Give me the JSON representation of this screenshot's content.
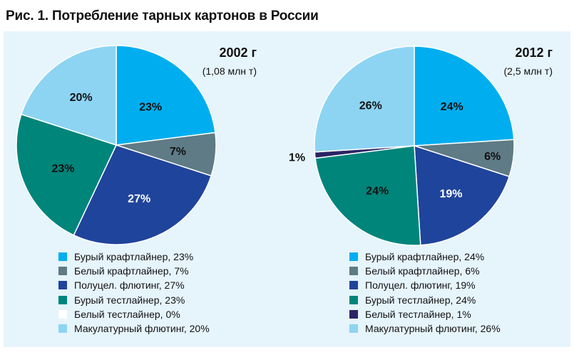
{
  "figure": {
    "title": "Рис. 1. Потребление тарных картонов в России"
  },
  "chart_data": [
    {
      "type": "pie",
      "title": "2002 г",
      "subtitle": "(1,08 млн т)",
      "categories": [
        "Бурый крафтлайнер",
        "Белый крафтлайнер",
        "Полуцел. флютинг",
        "Бурый тестлайнер",
        "Белый тестлайнер",
        "Макулатурный флютинг"
      ],
      "values": [
        23,
        7,
        27,
        23,
        0,
        20
      ],
      "data_labels": [
        "23%",
        "7%",
        "27%",
        "23%",
        "",
        "20%"
      ],
      "legend_labels": [
        "Бурый крафтлайнер, 23%",
        "Белый крафтлайнер, 7%",
        "Полуцел. флютинг, 27%",
        "Бурый тестлайнер, 23%",
        "Белый тестлайнер, 0%",
        "Макулатурный флютинг, 20%"
      ],
      "colors": [
        "#00aeef",
        "#5e7b86",
        "#1f449b",
        "#00857b",
        "#ffffff",
        "#8dd4f3"
      ],
      "legend": "bottom"
    },
    {
      "type": "pie",
      "title": "2012 г",
      "subtitle": "(2,5 млн т)",
      "categories": [
        "Бурый крафтлайнер",
        "Белый крафтлайнер",
        "Полуцел. флютинг",
        "Бурый тестлайнер",
        "Белый тестлайнер",
        "Макулатурный флютинг"
      ],
      "values": [
        24,
        6,
        19,
        24,
        1,
        26
      ],
      "data_labels": [
        "24%",
        "6%",
        "19%",
        "24%",
        "1%",
        "26%"
      ],
      "legend_labels": [
        "Бурый крафтлайнер, 24%",
        "Белый крафтлайнер, 6%",
        "Полуцел. флютинг, 19%",
        "Бурый тестлайнер, 24%",
        "Белый тестлайнер, 1%",
        "Макулатурный флютинг, 26%"
      ],
      "colors": [
        "#00aeef",
        "#5e7b86",
        "#1f449b",
        "#00857b",
        "#2b2464",
        "#8dd4f3"
      ],
      "legend": "bottom"
    }
  ]
}
